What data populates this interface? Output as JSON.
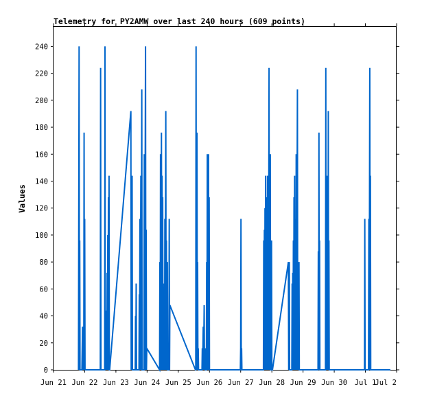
{
  "chart_data": {
    "type": "line",
    "title": "Telemetry for PY2AMW over last 240 hours (609 points)",
    "xlabel": "",
    "ylabel": "Values",
    "x_tick_labels": [
      "Jun 21",
      "Jun 22",
      "Jun 23",
      "Jun 24",
      "Jun 25",
      "Jun 26",
      "Jun 27",
      "Jun 28",
      "Jun 29",
      "Jun 30",
      "Jul 1",
      "Jul 2"
    ],
    "xlim_days": [
      0,
      11
    ],
    "x_axis_start_label": "Jun 21",
    "y_ticks": [
      0,
      20,
      40,
      60,
      80,
      100,
      120,
      140,
      160,
      180,
      200,
      220,
      240
    ],
    "ylim": [
      0,
      255
    ],
    "grid": false,
    "line_color": "#0066cc",
    "series": [
      {
        "name": "",
        "points": [
          [
            0.8,
            0
          ],
          [
            0.82,
            240
          ],
          [
            0.83,
            0
          ],
          [
            0.84,
            96
          ],
          [
            0.85,
            0
          ],
          [
            0.91,
            0
          ],
          [
            0.92,
            16
          ],
          [
            0.93,
            32
          ],
          [
            0.94,
            0
          ],
          [
            0.95,
            16
          ],
          [
            0.96,
            32
          ],
          [
            0.97,
            0
          ],
          [
            0.98,
            176
          ],
          [
            0.99,
            0
          ],
          [
            1.0,
            112
          ],
          [
            1.01,
            0
          ],
          [
            1.5,
            0
          ],
          [
            1.51,
            224
          ],
          [
            1.52,
            0
          ],
          [
            1.64,
            0
          ],
          [
            1.65,
            240
          ],
          [
            1.66,
            0
          ],
          [
            1.68,
            16
          ],
          [
            1.69,
            0
          ],
          [
            1.7,
            44
          ],
          [
            1.71,
            0
          ],
          [
            1.72,
            72
          ],
          [
            1.73,
            0
          ],
          [
            1.74,
            100
          ],
          [
            1.75,
            0
          ],
          [
            1.76,
            128
          ],
          [
            1.77,
            0
          ],
          [
            1.78,
            144
          ],
          [
            1.79,
            0
          ],
          [
            1.8,
            0
          ],
          [
            2.48,
            192
          ],
          [
            2.49,
            0
          ],
          [
            2.5,
            96
          ],
          [
            2.51,
            0
          ],
          [
            2.52,
            144
          ],
          [
            2.53,
            0
          ],
          [
            2.62,
            0
          ],
          [
            2.63,
            40
          ],
          [
            2.64,
            0
          ],
          [
            2.65,
            64
          ],
          [
            2.66,
            0
          ],
          [
            2.74,
            0
          ],
          [
            2.75,
            56
          ],
          [
            2.76,
            0
          ],
          [
            2.77,
            112
          ],
          [
            2.78,
            0
          ],
          [
            2.8,
            144
          ],
          [
            2.81,
            0
          ],
          [
            2.83,
            208
          ],
          [
            2.84,
            0
          ],
          [
            2.9,
            0
          ],
          [
            2.91,
            160
          ],
          [
            2.92,
            0
          ],
          [
            2.95,
            240
          ],
          [
            2.96,
            0
          ],
          [
            2.97,
            104
          ],
          [
            2.98,
            0
          ],
          [
            2.99,
            16
          ],
          [
            3.4,
            0
          ],
          [
            3.41,
            80
          ],
          [
            3.42,
            0
          ],
          [
            3.43,
            160
          ],
          [
            3.44,
            0
          ],
          [
            3.46,
            176
          ],
          [
            3.47,
            0
          ],
          [
            3.48,
            144
          ],
          [
            3.49,
            0
          ],
          [
            3.5,
            128
          ],
          [
            3.51,
            0
          ],
          [
            3.53,
            16
          ],
          [
            3.54,
            0
          ],
          [
            3.55,
            64
          ],
          [
            3.56,
            0
          ],
          [
            3.57,
            112
          ],
          [
            3.58,
            0
          ],
          [
            3.6,
            192
          ],
          [
            3.61,
            0
          ],
          [
            3.62,
            96
          ],
          [
            3.63,
            0
          ],
          [
            3.65,
            80
          ],
          [
            3.66,
            0
          ],
          [
            3.7,
            0
          ],
          [
            3.71,
            112
          ],
          [
            3.72,
            0
          ],
          [
            3.73,
            48
          ],
          [
            4.55,
            0
          ],
          [
            4.56,
            0
          ],
          [
            4.57,
            240
          ],
          [
            4.58,
            0
          ],
          [
            4.6,
            176
          ],
          [
            4.61,
            0
          ],
          [
            4.62,
            80
          ],
          [
            4.63,
            0
          ],
          [
            4.64,
            16
          ],
          [
            4.65,
            0
          ],
          [
            4.76,
            0
          ],
          [
            4.77,
            16
          ],
          [
            4.78,
            0
          ],
          [
            4.8,
            32
          ],
          [
            4.81,
            0
          ],
          [
            4.83,
            48
          ],
          [
            4.84,
            0
          ],
          [
            4.86,
            16
          ],
          [
            4.87,
            0
          ],
          [
            4.9,
            0
          ],
          [
            4.91,
            80
          ],
          [
            4.92,
            0
          ],
          [
            4.93,
            160
          ],
          [
            4.94,
            0
          ],
          [
            4.97,
            160
          ],
          [
            4.98,
            0
          ],
          [
            4.99,
            128
          ],
          [
            5.0,
            0
          ],
          [
            5.99,
            0
          ],
          [
            6.0,
            16
          ],
          [
            6.01,
            112
          ],
          [
            6.02,
            0
          ],
          [
            6.03,
            16
          ],
          [
            6.04,
            0
          ],
          [
            6.73,
            0
          ],
          [
            6.74,
            96
          ],
          [
            6.75,
            0
          ],
          [
            6.76,
            104
          ],
          [
            6.77,
            0
          ],
          [
            6.78,
            120
          ],
          [
            6.79,
            0
          ],
          [
            6.8,
            144
          ],
          [
            6.81,
            0
          ],
          [
            6.82,
            128
          ],
          [
            6.83,
            0
          ],
          [
            6.84,
            32
          ],
          [
            6.85,
            0
          ],
          [
            6.86,
            144
          ],
          [
            6.87,
            0
          ],
          [
            6.88,
            72
          ],
          [
            6.89,
            0
          ],
          [
            6.91,
            224
          ],
          [
            6.92,
            0
          ],
          [
            6.93,
            96
          ],
          [
            6.94,
            0
          ],
          [
            6.95,
            160
          ],
          [
            6.96,
            0
          ],
          [
            6.98,
            0
          ],
          [
            6.99,
            96
          ],
          [
            7.0,
            0
          ],
          [
            7.02,
            0
          ],
          [
            7.53,
            80
          ],
          [
            7.54,
            0
          ],
          [
            7.56,
            80
          ],
          [
            7.57,
            0
          ],
          [
            7.64,
            0
          ],
          [
            7.65,
            64
          ],
          [
            7.66,
            0
          ],
          [
            7.67,
            72
          ],
          [
            7.68,
            0
          ],
          [
            7.69,
            96
          ],
          [
            7.7,
            0
          ],
          [
            7.71,
            128
          ],
          [
            7.72,
            0
          ],
          [
            7.73,
            144
          ],
          [
            7.74,
            0
          ],
          [
            7.76,
            112
          ],
          [
            7.77,
            0
          ],
          [
            7.78,
            160
          ],
          [
            7.79,
            0
          ],
          [
            7.82,
            208
          ],
          [
            7.83,
            0
          ],
          [
            7.84,
            64
          ],
          [
            7.85,
            0
          ],
          [
            7.87,
            80
          ],
          [
            7.88,
            0
          ],
          [
            8.48,
            0
          ],
          [
            8.49,
            88
          ],
          [
            8.5,
            0
          ],
          [
            8.51,
            176
          ],
          [
            8.52,
            0
          ],
          [
            8.53,
            96
          ],
          [
            8.54,
            0
          ],
          [
            8.72,
            0
          ],
          [
            8.73,
            224
          ],
          [
            8.74,
            0
          ],
          [
            8.75,
            144
          ],
          [
            8.76,
            0
          ],
          [
            8.77,
            144
          ],
          [
            8.78,
            0
          ],
          [
            8.79,
            144
          ],
          [
            8.8,
            0
          ],
          [
            8.81,
            192
          ],
          [
            8.82,
            0
          ],
          [
            8.83,
            96
          ],
          [
            8.84,
            0
          ],
          [
            9.97,
            0
          ],
          [
            9.98,
            112
          ],
          [
            9.99,
            0
          ],
          [
            10.1,
            0
          ],
          [
            10.11,
            112
          ],
          [
            10.12,
            0
          ],
          [
            10.14,
            224
          ],
          [
            10.15,
            0
          ],
          [
            10.16,
            144
          ],
          [
            10.17,
            0
          ],
          [
            10.8,
            0
          ]
        ]
      }
    ]
  }
}
